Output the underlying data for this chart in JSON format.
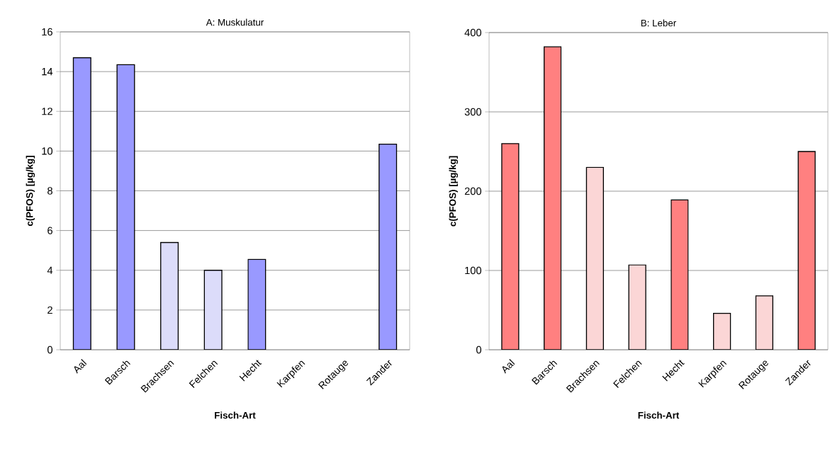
{
  "chart_data": [
    {
      "type": "bar",
      "title": "A: Muskulatur",
      "xlabel": "Fisch-Art",
      "ylabel": "c(PFOS) [µg/kg]",
      "categories": [
        "Aal",
        "Barsch",
        "Brachsen",
        "Felchen",
        "Hecht",
        "Karpfen",
        "Rotauge",
        "Zander"
      ],
      "values": [
        14.7,
        14.35,
        5.4,
        4.0,
        4.55,
        null,
        null,
        10.35
      ],
      "colors": [
        "#9999ff",
        "#9999ff",
        "#dcdcfa",
        "#dcdcfa",
        "#9999ff",
        "#9999ff",
        "#9999ff",
        "#9999ff"
      ],
      "ylim": [
        0,
        16
      ],
      "yticks": [
        0,
        2,
        4,
        6,
        8,
        10,
        12,
        14,
        16
      ],
      "grid": "y"
    },
    {
      "type": "bar",
      "title": "B: Leber",
      "xlabel": "Fisch-Art",
      "ylabel": "c(PFOS) [µg/kg]",
      "categories": [
        "Aal",
        "Barsch",
        "Brachsen",
        "Felchen",
        "Hecht",
        "Karpfen",
        "Rotauge",
        "Zander"
      ],
      "values": [
        260,
        382,
        230,
        107,
        189,
        46,
        68,
        250
      ],
      "colors": [
        "#ff8080",
        "#ff8080",
        "#fbd6d6",
        "#fbd6d6",
        "#ff8080",
        "#fbd6d6",
        "#fbd6d6",
        "#ff8080"
      ],
      "ylim": [
        0,
        400
      ],
      "yticks": [
        0,
        100,
        200,
        300,
        400
      ],
      "grid": "y"
    }
  ]
}
